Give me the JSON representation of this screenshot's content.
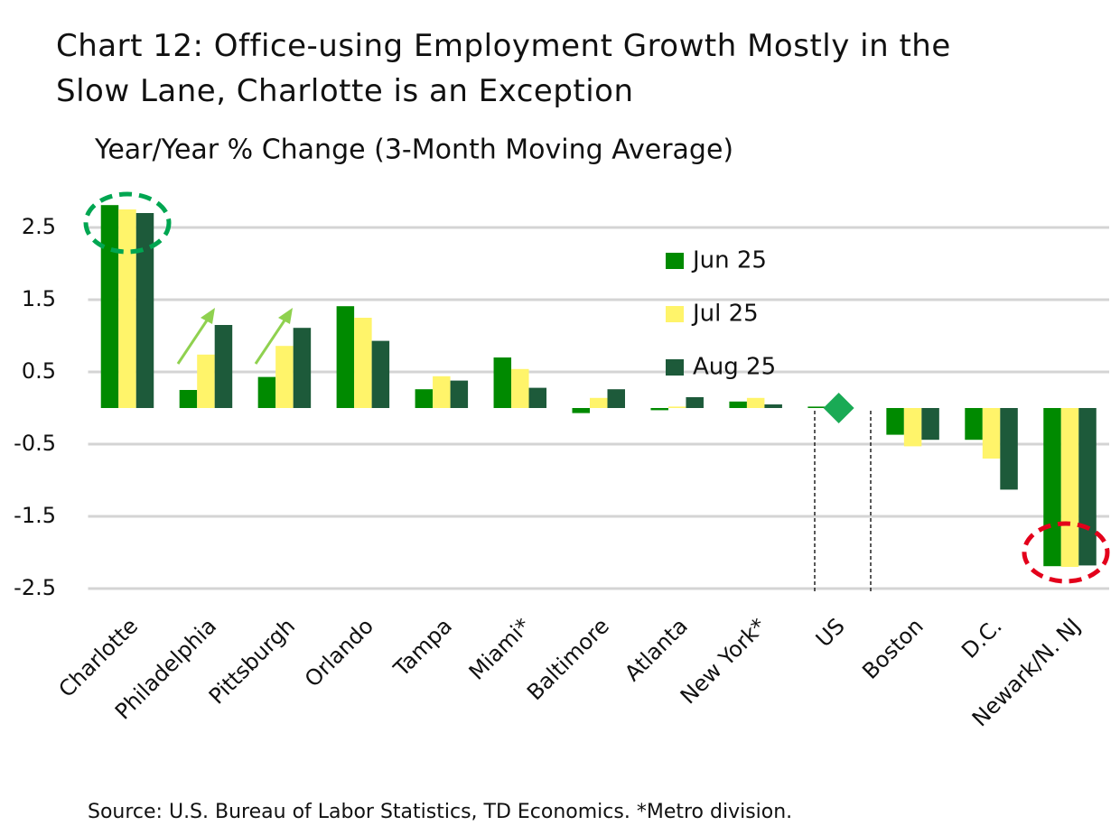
{
  "chart_data": {
    "type": "bar",
    "title": "Chart 12: Office-using Employment Growth Mostly in the Slow Lane, Charlotte is an Exception",
    "subtitle": "Year/Year % Change (3-Month Moving Average)",
    "source": "Source: U.S. Bureau of Labor Statistics, TD Economics. *Metro division.",
    "categories": [
      "Charlotte",
      "Philadelphia",
      "Pittsburgh",
      "Orlando",
      "Tampa",
      "Miami*",
      "Baltimore",
      "Atlanta",
      "New York*",
      "US",
      "Boston",
      "D.C.",
      "Newark/N. NJ"
    ],
    "series": [
      {
        "name": "Jun 25",
        "color": "#008a00",
        "values": [
          2.81,
          0.25,
          0.43,
          1.41,
          0.26,
          0.7,
          -0.07,
          -0.03,
          0.09,
          0.02,
          -0.37,
          -0.44,
          -2.19
        ]
      },
      {
        "name": "Jul 25",
        "color": "#fff46a",
        "values": [
          2.75,
          0.74,
          0.86,
          1.25,
          0.44,
          0.54,
          0.14,
          0.02,
          0.14,
          null,
          -0.53,
          -0.7,
          -2.2
        ]
      },
      {
        "name": "Aug 25",
        "color": "#1d5a3a",
        "values": [
          2.7,
          1.15,
          1.11,
          0.93,
          0.38,
          0.28,
          0.26,
          0.15,
          0.05,
          null,
          -0.44,
          -1.13,
          -2.18
        ]
      }
    ],
    "marker": {
      "category": "US",
      "value": 0.0,
      "color": "#1aaa55"
    },
    "ylim": [
      -2.5,
      3.0
    ],
    "yticks": [
      2.5,
      1.5,
      0.5,
      -0.5,
      -1.5,
      -2.5
    ],
    "grid": true
  }
}
